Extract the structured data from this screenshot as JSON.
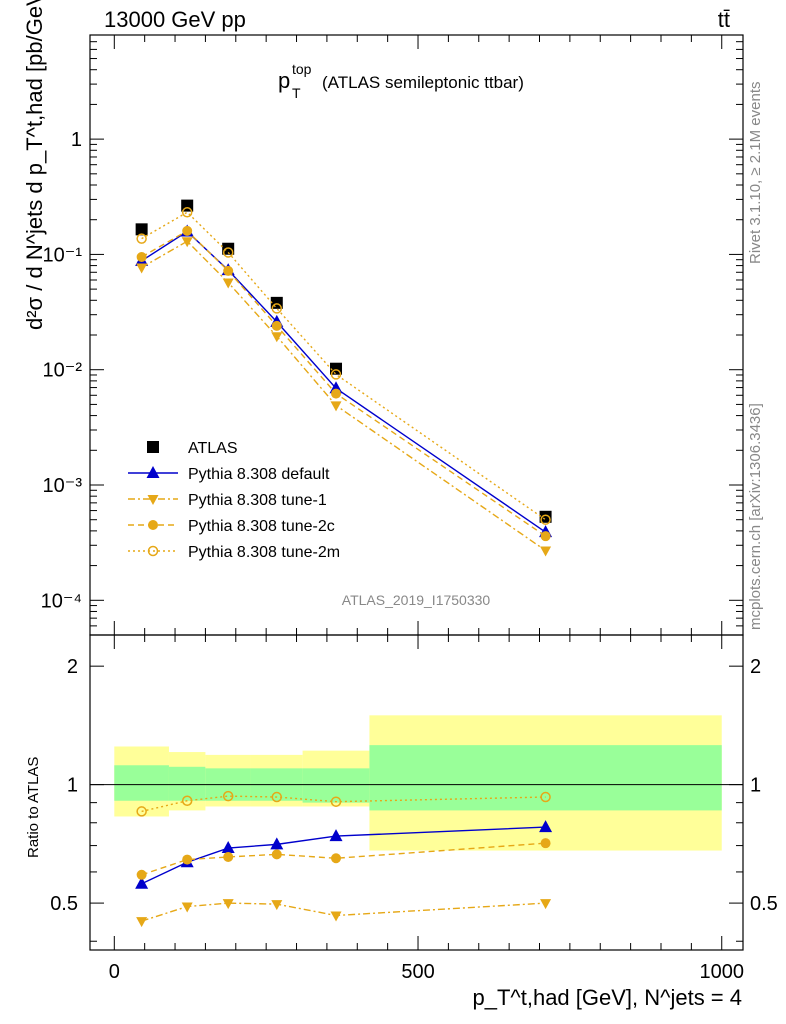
{
  "header": {
    "energy_label": "13000 GeV pp",
    "process_label": "tt̄",
    "title_main": "p",
    "title_sup": "top",
    "title_sub": "T",
    "title_rest": "(ATLAS semileptonic ttbar)",
    "analysis_id": "ATLAS_2019_I1750330"
  },
  "side_labels": {
    "rivet": "Rivet 3.1.10, ≥ 2.1M events",
    "mcplots": "mcplots.cern.ch [arXiv:1306.3436]"
  },
  "axes": {
    "top_ylabel": "d²σ / d N^jets d p_T^t,had [pb/GeV]",
    "ratio_ylabel": "Ratio to ATLAS",
    "xlabel": "p_T^t,had [GeV], N^jets = 4",
    "top_yticks": [
      "10⁻⁴",
      "10⁻³",
      "10⁻²",
      "10⁻¹",
      "1"
    ],
    "ratio_yticks": [
      "0.5",
      "1",
      "2"
    ],
    "xticks": [
      "0",
      "500",
      "1000"
    ]
  },
  "legend": {
    "atlas": "ATLAS",
    "default": "Pythia 8.308 default",
    "tune1": "Pythia 8.308 tune-1",
    "tune2c": "Pythia 8.308 tune-2c",
    "tune2m": "Pythia 8.308 tune-2m"
  },
  "colors": {
    "data": "#000000",
    "default": "#0000cc",
    "tune": "#e6a817",
    "band_stat": "#99ff99",
    "band_total": "#ffff99"
  },
  "chart_data": {
    "type": "scatter",
    "x_bins": [
      [
        0,
        90
      ],
      [
        90,
        150
      ],
      [
        150,
        225
      ],
      [
        225,
        310
      ],
      [
        310,
        420
      ],
      [
        420,
        1000
      ]
    ],
    "x": [
      45,
      120,
      187.5,
      267.5,
      365,
      710
    ],
    "xlim": [
      -40,
      1035
    ],
    "top_ylim": [
      5e-05,
      8
    ],
    "top_yscale": "log",
    "ratio_ylim": [
      0.38,
      2.4
    ],
    "ratio_yscale": "log",
    "series": [
      {
        "name": "ATLAS",
        "values": [
          0.165,
          0.265,
          0.112,
          0.038,
          0.0102,
          0.00053
        ]
      },
      {
        "name": "Pythia 8.308 default",
        "values": [
          0.088,
          0.158,
          0.073,
          0.026,
          0.0069,
          0.00039
        ]
      },
      {
        "name": "Pythia 8.308 tune-1",
        "values": [
          0.077,
          0.13,
          0.057,
          0.0195,
          0.0049,
          0.00027
        ]
      },
      {
        "name": "Pythia 8.308 tune-2c",
        "values": [
          0.095,
          0.16,
          0.072,
          0.024,
          0.0062,
          0.00036
        ]
      },
      {
        "name": "Pythia 8.308 tune-2m",
        "values": [
          0.137,
          0.232,
          0.104,
          0.034,
          0.0091,
          0.0005
        ]
      }
    ],
    "ratio_series": [
      {
        "name": "Pythia 8.308 default",
        "values": [
          0.56,
          0.635,
          0.69,
          0.705,
          0.74,
          0.78
        ]
      },
      {
        "name": "Pythia 8.308 tune-1",
        "values": [
          0.45,
          0.49,
          0.5,
          0.497,
          0.465,
          0.5
        ]
      },
      {
        "name": "Pythia 8.308 tune-2c",
        "values": [
          0.59,
          0.645,
          0.655,
          0.665,
          0.65,
          0.71
        ]
      },
      {
        "name": "Pythia 8.308 tune-2m",
        "values": [
          0.855,
          0.91,
          0.935,
          0.93,
          0.905,
          0.93
        ]
      }
    ],
    "ratio_band_stat": [
      [
        0.91,
        1.12
      ],
      [
        0.91,
        1.11
      ],
      [
        0.91,
        1.1
      ],
      [
        0.91,
        1.1
      ],
      [
        0.9,
        1.1
      ],
      [
        0.86,
        1.26
      ]
    ],
    "ratio_band_total": [
      [
        0.83,
        1.25
      ],
      [
        0.86,
        1.21
      ],
      [
        0.88,
        1.19
      ],
      [
        0.88,
        1.19
      ],
      [
        0.88,
        1.22
      ],
      [
        0.68,
        1.5
      ]
    ]
  }
}
